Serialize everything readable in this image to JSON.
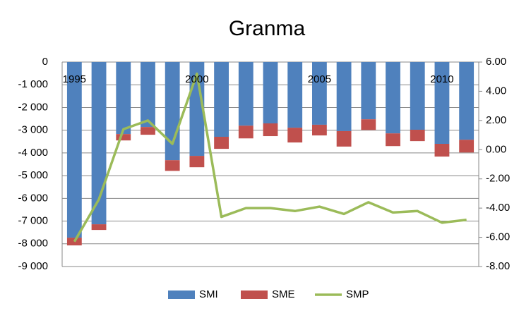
{
  "chart_data": {
    "type": "bar",
    "title": "Granma",
    "categories": [
      "1995",
      null,
      null,
      null,
      null,
      "2000",
      null,
      null,
      null,
      null,
      "2005",
      null,
      null,
      null,
      null,
      "2010",
      null
    ],
    "series": [
      {
        "name": "SMI",
        "color": "#4f81bd",
        "values": [
          -7730,
          -7140,
          -3170,
          -2860,
          -4320,
          -4130,
          -3290,
          -2800,
          -2700,
          -2890,
          -2760,
          -3040,
          -2520,
          -3140,
          -2980,
          -3600,
          -3420
        ]
      },
      {
        "name": "SME",
        "color": "#c0504d",
        "values": [
          -340,
          -250,
          -280,
          -340,
          -470,
          -500,
          -530,
          -560,
          -560,
          -650,
          -470,
          -680,
          -470,
          -560,
          -500,
          -560,
          -560
        ]
      },
      {
        "name": "SMP",
        "color": "#9bbb59",
        "type": "line",
        "axis": "y2",
        "values": [
          -6.3,
          -3.4,
          1.4,
          2.0,
          0.4,
          5.2,
          -4.6,
          -4.0,
          -4.0,
          -4.2,
          -3.9,
          -4.4,
          -3.6,
          -4.3,
          -4.2,
          -5.0,
          -4.8
        ]
      }
    ],
    "ylim": [
      -9000,
      0
    ],
    "yticks": [
      0,
      {
        "value": -1000,
        "label": "-1 000"
      },
      {
        "value": -2000,
        "label": "-2 000"
      },
      {
        "value": -3000,
        "label": "-3 000"
      },
      {
        "value": -4000,
        "label": "-4 000"
      },
      {
        "value": -5000,
        "label": "-5 000"
      },
      {
        "value": -6000,
        "label": "-6 000"
      },
      {
        "value": -7000,
        "label": "-7 000"
      },
      {
        "value": -8000,
        "label": "-8 000"
      },
      {
        "value": -9000,
        "label": "-9 000"
      }
    ],
    "y2lim": [
      -8,
      6
    ],
    "y2ticks": [
      {
        "value": 6,
        "label": "6.00"
      },
      {
        "value": 4,
        "label": "4.00"
      },
      {
        "value": 2,
        "label": "2.00"
      },
      {
        "value": 0,
        "label": "0.00"
      },
      {
        "value": -2,
        "label": "-2.00"
      },
      {
        "value": -4,
        "label": "-4.00"
      },
      {
        "value": -6,
        "label": "-6.00"
      },
      {
        "value": -8,
        "label": "-8.00"
      }
    ],
    "grid": true,
    "legend": "bottom"
  }
}
